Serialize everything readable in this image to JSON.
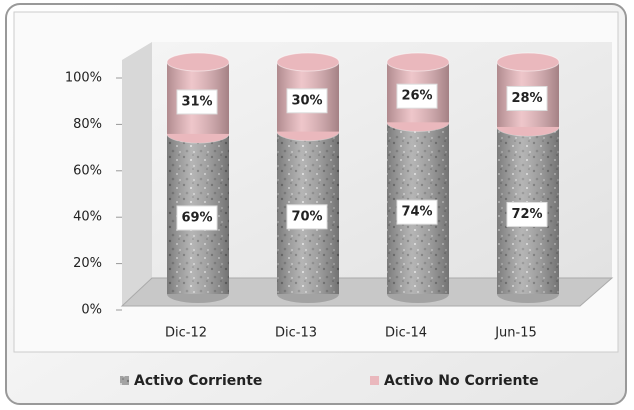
{
  "chart_data": {
    "type": "bar",
    "stacked": true,
    "categories": [
      "Dic-12",
      "Dic-13",
      "Dic-14",
      "Jun-15"
    ],
    "series": [
      {
        "name": "Activo Corriente",
        "color": "#a3a3a3",
        "values": [
          69,
          70,
          74,
          72
        ],
        "value_labels": [
          "69%",
          "70%",
          "74%",
          "72%"
        ]
      },
      {
        "name": "Activo No Corriente",
        "color": "#eab8bd",
        "values": [
          31,
          30,
          26,
          28
        ],
        "value_labels": [
          "31%",
          "30%",
          "26%",
          "28%"
        ]
      }
    ],
    "ylim": [
      0,
      100
    ],
    "yticks": [
      {
        "value": 0,
        "label": "0%"
      },
      {
        "value": 20,
        "label": "20%"
      },
      {
        "value": 40,
        "label": "40%"
      },
      {
        "value": 60,
        "label": "60%"
      },
      {
        "value": 80,
        "label": "80%"
      },
      {
        "value": 100,
        "label": "100%"
      }
    ],
    "grid": false,
    "legend": "bottom"
  }
}
